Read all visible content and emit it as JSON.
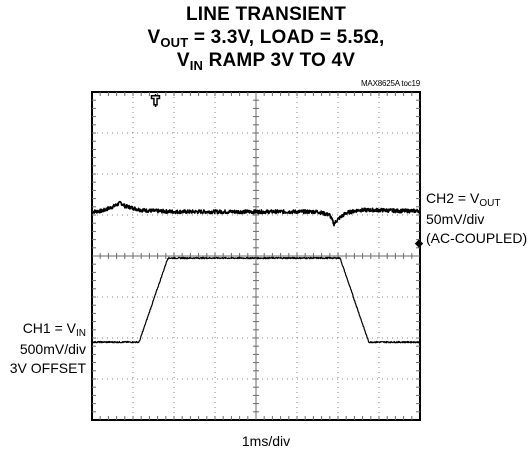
{
  "chart_data": {
    "type": "line",
    "title_line1": "LINE TRANSIENT",
    "title_line2": {
      "a": "V",
      "a_sub": "OUT",
      "b": " = 3.3V, LOAD = 5.5Ω,"
    },
    "title_line3": {
      "a": "V",
      "a_sub": "IN",
      "b": " RAMP 3V TO 4V"
    },
    "figure_tag": "MAX8625A toc19",
    "xlabel": "1ms/div",
    "grid": true,
    "divisions": {
      "x": 8,
      "y": 8
    },
    "series": [
      {
        "label": {
          "a": "CH2 = V",
          "a_sub": "OUT"
        },
        "scale": "50mV/div",
        "note": "(AC-COUPLED)",
        "x": [
          0,
          0.25,
          0.55,
          0.7,
          0.8,
          1.2,
          1.5,
          2.0,
          2.5,
          3.0,
          3.5,
          4.0,
          4.5,
          5.0,
          5.5,
          5.8,
          5.9,
          6.0,
          6.2,
          6.5,
          7.0,
          7.5,
          8.0
        ],
        "y": [
          1.08,
          1.1,
          1.22,
          1.3,
          1.22,
          1.12,
          1.1,
          1.08,
          1.08,
          1.08,
          1.08,
          1.08,
          1.08,
          1.08,
          1.08,
          1.0,
          0.78,
          0.9,
          1.05,
          1.12,
          1.12,
          1.1,
          1.1
        ]
      },
      {
        "label": {
          "a": "CH1 = V",
          "a_sub": "IN"
        },
        "scale": "500mV/div",
        "note": "3V OFFSET",
        "x": [
          0,
          1.05,
          1.15,
          1.85,
          1.95,
          5.95,
          6.05,
          6.75,
          6.85,
          8.0
        ],
        "y": [
          -2.1,
          -2.1,
          -2.1,
          -0.05,
          -0.05,
          -0.05,
          -0.05,
          -2.1,
          -2.1,
          -2.1
        ]
      }
    ],
    "trigger_marker": "T",
    "ch1_marker": "◆"
  }
}
